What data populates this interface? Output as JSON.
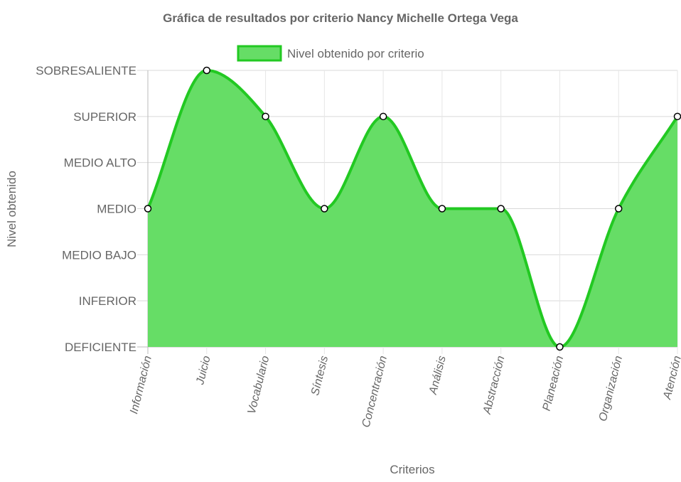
{
  "chart_data": {
    "type": "area",
    "title": "Gráfica de resultados por criterio Nancy Michelle Ortega Vega",
    "xlabel": "Criterios",
    "ylabel": "Nivel obtenido",
    "legend_position": "top",
    "grid": true,
    "levels": [
      "DEFICIENTE",
      "INFERIOR",
      "MEDIO BAJO",
      "MEDIO",
      "MEDIO ALTO",
      "SUPERIOR",
      "SOBRESALIENTE"
    ],
    "ylim": [
      0,
      6
    ],
    "categories": [
      "Información",
      "Juicio",
      "Vocabulario",
      "Síntesis",
      "Concentración",
      "Análisis",
      "Abstracción",
      "Planeación",
      "Organización",
      "Atención"
    ],
    "series": [
      {
        "name": "Nivel obtenido por criterio",
        "values": [
          3,
          6,
          5,
          3,
          5,
          3,
          3,
          0,
          3,
          5
        ],
        "color": "#22c922",
        "fill": "#66dd66"
      }
    ]
  }
}
